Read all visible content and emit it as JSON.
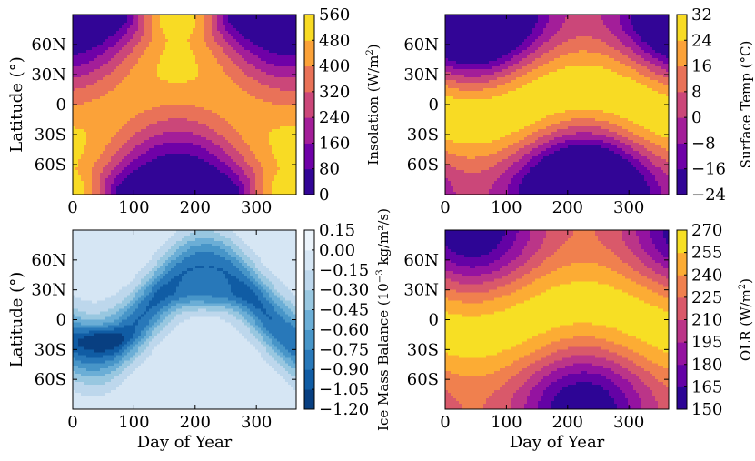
{
  "chart_data": [
    {
      "type": "heatmap",
      "panel": "top-left",
      "title": "",
      "xlabel": "",
      "ylabel": "Latitude (°)",
      "xlim": [
        0,
        365
      ],
      "ylim": [
        -90,
        90
      ],
      "x_ticks": [
        0,
        100,
        200,
        300
      ],
      "x_tick_labels": [
        "0",
        "100",
        "200",
        "300"
      ],
      "y_ticks": [
        60,
        30,
        0,
        -30,
        -60
      ],
      "y_tick_labels": [
        "60N",
        "30N",
        "0",
        "30S",
        "60S"
      ],
      "colormap": "plasma",
      "colorbar": {
        "label_main": "Insolation (W/m",
        "label_sup": "2",
        "label_end": ")",
        "min": 0,
        "max": 560,
        "ticks": [
          0,
          80,
          160,
          240,
          320,
          400,
          480,
          560
        ],
        "tick_labels": [
          "0",
          "80",
          "160",
          "240",
          "320",
          "400",
          "480",
          "560"
        ]
      },
      "field": "insolation"
    },
    {
      "type": "heatmap",
      "panel": "top-right",
      "title": "",
      "xlabel": "",
      "ylabel": "",
      "xlim": [
        0,
        365
      ],
      "ylim": [
        -90,
        90
      ],
      "x_ticks": [
        0,
        100,
        200,
        300
      ],
      "x_tick_labels": [
        "0",
        "100",
        "200",
        "300"
      ],
      "y_ticks": [
        60,
        30,
        0,
        -30,
        -60
      ],
      "y_tick_labels": [
        "60N",
        "30N",
        "0",
        "30S",
        "60S"
      ],
      "colormap": "plasma",
      "colorbar": {
        "label_main": "Surface Temp (°C)",
        "label_sup": "",
        "label_end": "",
        "min": -24,
        "max": 32,
        "ticks": [
          -24,
          -16,
          -8,
          0,
          8,
          16,
          24,
          32
        ],
        "tick_labels": [
          "−24",
          "−16",
          "−8",
          "0",
          "8",
          "16",
          "24",
          "32"
        ]
      },
      "field": "temperature"
    },
    {
      "type": "heatmap",
      "panel": "bottom-left",
      "title": "",
      "xlabel": "Day of Year",
      "ylabel": "Latitude (°)",
      "xlim": [
        0,
        365
      ],
      "ylim": [
        -90,
        90
      ],
      "x_ticks": [
        0,
        100,
        200,
        300
      ],
      "x_tick_labels": [
        "0",
        "100",
        "200",
        "300"
      ],
      "y_ticks": [
        60,
        30,
        0,
        -30,
        -60
      ],
      "y_tick_labels": [
        "60N",
        "30N",
        "0",
        "30S",
        "60S"
      ],
      "colormap": "blues_reversed",
      "colorbar": {
        "label_main": "Ice Mass Balance (10",
        "label_sup": "−3",
        "label_end": " kg/m²/s)",
        "min": -1.2,
        "max": 0.15,
        "ticks": [
          -1.2,
          -1.05,
          -0.9,
          -0.75,
          -0.6,
          -0.45,
          -0.3,
          -0.15,
          0.0,
          0.15
        ],
        "tick_labels": [
          "−1.20",
          "−1.05",
          "−0.90",
          "−0.75",
          "−0.60",
          "−0.45",
          "−0.30",
          "−0.15",
          "0.00",
          "0.15"
        ]
      },
      "field": "ice"
    },
    {
      "type": "heatmap",
      "panel": "bottom-right",
      "title": "",
      "xlabel": "Day of Year",
      "ylabel": "",
      "xlim": [
        0,
        365
      ],
      "ylim": [
        -90,
        90
      ],
      "x_ticks": [
        0,
        100,
        200,
        300
      ],
      "x_tick_labels": [
        "0",
        "100",
        "200",
        "300"
      ],
      "y_ticks": [
        60,
        30,
        0,
        -30,
        -60
      ],
      "y_tick_labels": [
        "60N",
        "30N",
        "0",
        "30S",
        "60S"
      ],
      "colormap": "plasma",
      "colorbar": {
        "label_main": "OLR (W/m",
        "label_sup": "2",
        "label_end": ")",
        "min": 150,
        "max": 270,
        "ticks": [
          150,
          165,
          180,
          195,
          210,
          225,
          240,
          255,
          270
        ],
        "tick_labels": [
          "150",
          "165",
          "180",
          "195",
          "210",
          "225",
          "240",
          "255",
          "270"
        ]
      },
      "field": "olr"
    }
  ]
}
